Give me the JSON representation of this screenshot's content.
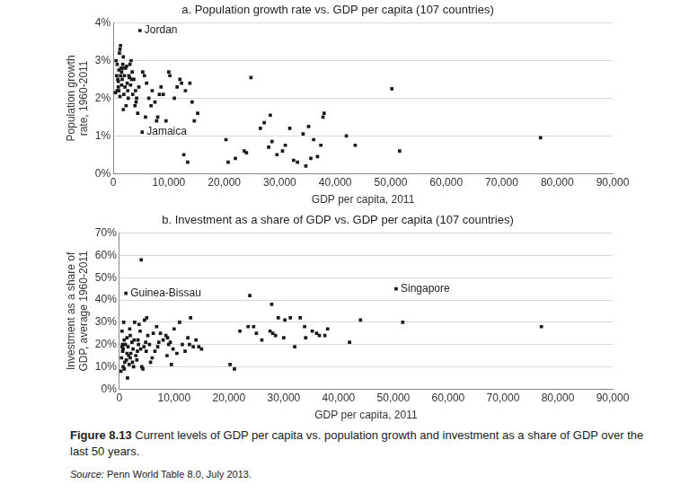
{
  "chart_data": [
    {
      "type": "scatter",
      "title": "a. Population growth rate vs. GDP per capita (107 countries)",
      "x_label": "GDP per capita, 2011",
      "y_label": "Population growth rate, 1960-2011",
      "color": "#1a1a1a",
      "marker": "square",
      "grid": "y",
      "x": [
        500,
        700,
        900,
        1000,
        1100,
        1200,
        1300,
        1400,
        1500,
        1600,
        1700,
        1800,
        1900,
        2000,
        2200,
        2300,
        2500,
        2700,
        2800,
        3000,
        3200,
        3400,
        3500,
        3700,
        3900,
        4000,
        4200,
        4400,
        4600,
        4800,
        5200,
        5300,
        5600,
        6000,
        6400,
        7000,
        7500,
        7800,
        8300,
        8600,
        9000,
        9500,
        10000,
        10200,
        11000,
        11500,
        12000,
        12300,
        12700,
        13000,
        13400,
        13800,
        14200,
        14600,
        15200,
        20300,
        20700,
        22000,
        23600,
        24000,
        24800,
        26500,
        27200,
        28000,
        28300,
        28600,
        29500,
        30500,
        31000,
        31800,
        32500,
        33200,
        34200,
        34700,
        35200,
        35600,
        36100,
        36800,
        37400,
        37800,
        38000,
        42000,
        43600,
        50200,
        51600,
        77000,
        600,
        800,
        1000,
        1500,
        2100,
        2600,
        3300,
        4100,
        1200,
        1800,
        900,
        2400,
        3100,
        700,
        1300,
        5800,
        6800,
        8000,
        1600,
        2900,
        400
      ],
      "values": [
        3.0,
        2.9,
        2.3,
        2.2,
        3.2,
        3.3,
        3.4,
        2.8,
        2.7,
        2.5,
        2.9,
        1.7,
        2.1,
        2.6,
        2.8,
        1.8,
        2.4,
        2.0,
        2.6,
        2.9,
        3.0,
        2.7,
        2.1,
        2.5,
        1.8,
        2.2,
        2.0,
        1.6,
        2.3,
        3.8,
        1.1,
        2.7,
        2.6,
        2.4,
        2.0,
        2.2,
        1.9,
        1.4,
        2.1,
        2.3,
        2.1,
        1.4,
        2.7,
        2.6,
        2.0,
        2.3,
        2.5,
        2.4,
        0.5,
        2.2,
        0.3,
        2.4,
        1.9,
        1.4,
        1.6,
        0.9,
        0.3,
        0.4,
        0.6,
        0.55,
        2.55,
        1.2,
        1.35,
        0.7,
        1.55,
        0.85,
        0.5,
        0.6,
        0.75,
        1.2,
        0.35,
        0.3,
        1.05,
        0.2,
        1.25,
        0.4,
        0.9,
        0.45,
        0.75,
        1.5,
        1.6,
        1.0,
        0.75,
        2.25,
        0.6,
        0.95,
        2.6,
        2.5,
        2.75,
        2.35,
        2.3,
        2.2,
        2.5,
        1.9,
        2.05,
        3.1,
        2.45,
        2.85,
        2.35,
        2.2,
        2.6,
        1.5,
        1.8,
        1.5,
        2.8,
        2.55,
        2.15
      ],
      "annotations": [
        {
          "text": "Jordan",
          "x": 4800,
          "y": 3.8
        },
        {
          "text": "Jamaica",
          "x": 5200,
          "y": 1.1
        }
      ],
      "xlim": [
        0,
        90000
      ],
      "xticks": [
        0,
        {
          "value": 10000,
          "label": "10,000"
        },
        {
          "value": 20000,
          "label": "20,000"
        },
        {
          "value": 30000,
          "label": "30,000"
        },
        {
          "value": 40000,
          "label": "40,000"
        },
        {
          "value": 50000,
          "label": "50,000"
        },
        {
          "value": 60000,
          "label": "60,000"
        },
        {
          "value": 70000,
          "label": "70,000"
        },
        {
          "value": 80000,
          "label": "80,000"
        },
        {
          "value": 90000,
          "label": "90,000"
        }
      ],
      "ylim": [
        0,
        4
      ],
      "yticks": [
        {
          "value": 0,
          "label": "0%"
        },
        {
          "value": 1,
          "label": "1%"
        },
        {
          "value": 2,
          "label": "2%"
        },
        {
          "value": 3,
          "label": "3%"
        },
        {
          "value": 4,
          "label": "4%"
        }
      ]
    },
    {
      "type": "scatter",
      "title": "b. Investment as a share of GDP vs. GDP per capita (107 countries)",
      "x_label": "GDP per capita, 2011",
      "y_label": "Investment as a share of GDP, average 1960-2011",
      "color": "#1a1a1a",
      "marker": "square",
      "grid": "y",
      "x": [
        1200,
        50500,
        4000,
        23800,
        27800,
        51700,
        77000,
        44000,
        42000,
        38000,
        37500,
        36000,
        35200,
        34000,
        33000,
        32000,
        31200,
        30000,
        29000,
        28000,
        27500,
        26000,
        25000,
        24500,
        23500,
        22000,
        21000,
        20200,
        14500,
        14000,
        13500,
        13000,
        12500,
        12000,
        11500,
        11000,
        10000,
        9800,
        9500,
        9000,
        8700,
        8500,
        8000,
        7500,
        7000,
        6500,
        6000,
        5500,
        5000,
        4800,
        4500,
        4300,
        3800,
        3500,
        3300,
        3000,
        2800,
        2500,
        2300,
        2000,
        1800,
        1600,
        1400,
        1000,
        900,
        800,
        700,
        600,
        500,
        400,
        300,
        2000,
        1500,
        3200,
        6200,
        6800,
        2600,
        1100,
        5200,
        3600,
        4600,
        700,
        1900,
        30200,
        28500,
        36500,
        33800,
        2100,
        2700,
        1300,
        3900,
        4900,
        7200,
        8800,
        10500,
        12800,
        1700,
        900,
        500,
        3400,
        5700,
        15000,
        9300,
        600,
        2400,
        1400,
        4100
      ],
      "values": [
        43,
        45,
        58,
        42,
        38,
        30,
        28,
        31,
        21,
        27,
        24,
        25,
        26,
        23,
        32,
        19,
        32,
        23,
        32,
        25,
        26,
        22,
        25,
        28,
        28,
        26,
        9,
        11,
        19,
        22,
        19,
        32,
        23,
        17,
        20,
        30,
        27,
        18,
        11,
        20,
        15,
        24,
        22,
        25,
        19,
        17,
        14,
        20,
        32,
        21,
        19,
        9,
        26,
        20,
        17,
        15,
        30,
        18,
        21,
        14,
        11,
        19,
        16,
        12,
        22,
        30,
        10,
        17,
        26,
        14,
        8,
        24,
        5,
        13,
        25,
        28,
        10,
        20,
        24,
        29,
        31,
        18,
        27,
        31,
        24,
        24,
        28,
        16,
        22,
        13,
        18,
        17,
        21,
        23,
        16,
        20,
        15,
        9,
        19,
        22,
        12,
        18,
        21,
        20,
        12,
        23,
        10
      ],
      "annotations": [
        {
          "text": "Guinea-Bissau",
          "x": 1200,
          "y": 43
        },
        {
          "text": "Singapore",
          "x": 50500,
          "y": 45
        }
      ],
      "xlim": [
        0,
        90000
      ],
      "xticks": [
        0,
        {
          "value": 10000,
          "label": "10,000"
        },
        {
          "value": 20000,
          "label": "20,000"
        },
        {
          "value": 30000,
          "label": "30,000"
        },
        {
          "value": 40000,
          "label": "40,000"
        },
        {
          "value": 50000,
          "label": "50,000"
        },
        {
          "value": 60000,
          "label": "60,000"
        },
        {
          "value": 70000,
          "label": "70,000"
        },
        {
          "value": 80000,
          "label": "80,000"
        },
        {
          "value": 90000,
          "label": "90,000"
        }
      ],
      "ylim": [
        0,
        70
      ],
      "yticks": [
        {
          "value": 0,
          "label": "0%"
        },
        {
          "value": 10,
          "label": "10%"
        },
        {
          "value": 20,
          "label": "20%"
        },
        {
          "value": 30,
          "label": "30%"
        },
        {
          "value": 40,
          "label": "40%"
        },
        {
          "value": 50,
          "label": "50%"
        },
        {
          "value": 60,
          "label": "60%"
        },
        {
          "value": 70,
          "label": "70%"
        }
      ]
    }
  ],
  "figure_label": "Figure 8.13",
  "caption": "Current levels of GDP per capita vs. population growth and investment as a share of GDP over the last 50 years.",
  "source_label": "Source:",
  "source": "Penn World Table 8.0, July 2013."
}
